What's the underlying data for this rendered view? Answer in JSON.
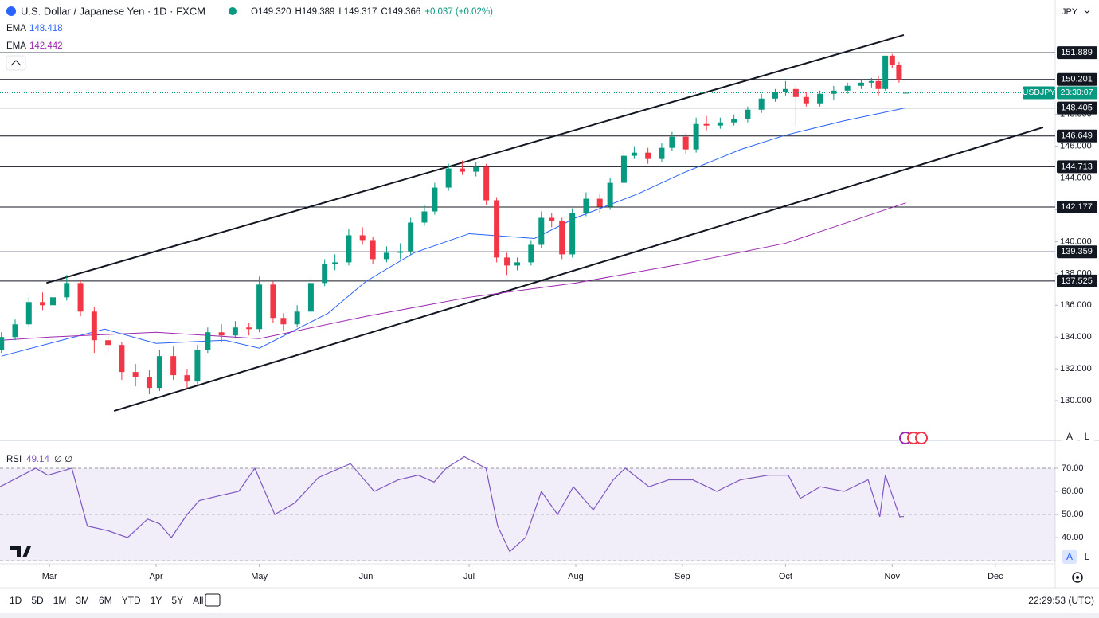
{
  "chart_data": [
    {
      "type": "candlestick",
      "title": "U.S. Dollar / Japanese Yen · 1D · FXCM",
      "ohlc_text": [
        "O149.320",
        "H149.389",
        "L149.317",
        "C149.366",
        "+0.037 (+0.02%)"
      ],
      "up_color": "#089981",
      "down_color": "#f23645",
      "xlim": [
        44.6,
        351.4
      ],
      "ylim": [
        128,
        155.2
      ],
      "grid": false,
      "xticks": [
        {
          "value": 59,
          "label": "Mar"
        },
        {
          "value": 90,
          "label": "Apr"
        },
        {
          "value": 120,
          "label": "May"
        },
        {
          "value": 151,
          "label": "Jun"
        },
        {
          "value": 181,
          "label": "Jul"
        },
        {
          "value": 212,
          "label": "Aug"
        },
        {
          "value": 243,
          "label": "Sep"
        },
        {
          "value": 273,
          "label": "Oct"
        },
        {
          "value": 304,
          "label": "Nov"
        },
        {
          "value": 334,
          "label": "Dec"
        }
      ],
      "yticks": [
        {
          "value": 130,
          "label": "130.000"
        },
        {
          "value": 132,
          "label": "132.000"
        },
        {
          "value": 134,
          "label": "134.000"
        },
        {
          "value": 136,
          "label": "136.000"
        },
        {
          "value": 138,
          "label": "138.000"
        },
        {
          "value": 140,
          "label": "140.000"
        },
        {
          "value": 142,
          "label": "142.000"
        },
        {
          "value": 144,
          "label": "144.000"
        },
        {
          "value": 146,
          "label": "146.000"
        },
        {
          "value": 148,
          "label": "148.000"
        }
      ],
      "candles": [
        [
          45,
          133.2,
          134.3,
          133.0,
          134.0
        ],
        [
          49,
          134.0,
          135.1,
          133.8,
          134.8
        ],
        [
          53,
          134.8,
          136.5,
          134.6,
          136.2
        ],
        [
          57,
          136.2,
          136.8,
          135.7,
          136.0
        ],
        [
          60,
          136.0,
          136.9,
          135.8,
          136.5
        ],
        [
          64,
          136.5,
          137.9,
          136.3,
          137.4
        ],
        [
          68,
          137.4,
          137.6,
          135.3,
          135.6
        ],
        [
          72,
          135.6,
          135.9,
          133.0,
          133.8
        ],
        [
          76,
          133.8,
          134.3,
          133.1,
          133.5
        ],
        [
          80,
          133.5,
          133.7,
          131.3,
          131.8
        ],
        [
          84,
          131.8,
          132.3,
          130.9,
          131.5
        ],
        [
          88,
          131.5,
          131.9,
          130.4,
          130.8
        ],
        [
          91,
          130.8,
          133.2,
          130.6,
          132.8
        ],
        [
          95,
          132.8,
          133.4,
          131.3,
          131.6
        ],
        [
          99,
          131.6,
          132.0,
          130.8,
          131.2
        ],
        [
          102,
          131.2,
          133.5,
          131.0,
          133.2
        ],
        [
          105,
          133.2,
          134.6,
          133.0,
          134.3
        ],
        [
          109,
          134.3,
          134.8,
          133.7,
          134.1
        ],
        [
          113,
          134.1,
          135.0,
          133.9,
          134.6
        ],
        [
          117,
          134.6,
          134.9,
          134.1,
          134.5
        ],
        [
          120,
          134.5,
          137.8,
          134.3,
          137.3
        ],
        [
          124,
          137.3,
          137.5,
          134.9,
          135.2
        ],
        [
          127,
          135.2,
          135.5,
          134.4,
          134.8
        ],
        [
          131,
          134.8,
          136.0,
          134.6,
          135.6
        ],
        [
          135,
          135.6,
          137.7,
          135.4,
          137.4
        ],
        [
          139,
          137.4,
          138.9,
          137.2,
          138.6
        ],
        [
          142,
          138.6,
          139.2,
          138.2,
          138.7
        ],
        [
          146,
          138.7,
          140.8,
          138.5,
          140.4
        ],
        [
          150,
          140.4,
          140.9,
          139.8,
          140.1
        ],
        [
          153,
          140.1,
          140.3,
          138.6,
          138.9
        ],
        [
          157,
          138.9,
          139.7,
          138.7,
          139.3
        ],
        [
          161,
          139.3,
          139.9,
          138.9,
          139.4
        ],
        [
          164,
          139.4,
          141.5,
          139.2,
          141.2
        ],
        [
          168,
          141.2,
          142.3,
          141.0,
          141.9
        ],
        [
          171,
          141.9,
          143.7,
          141.7,
          143.4
        ],
        [
          175,
          143.4,
          144.9,
          143.2,
          144.6
        ],
        [
          179,
          144.6,
          145.1,
          144.2,
          144.4
        ],
        [
          183,
          144.4,
          145.0,
          144.1,
          144.7
        ],
        [
          186,
          144.7,
          144.9,
          142.3,
          142.6
        ],
        [
          189,
          142.6,
          142.8,
          138.7,
          139.0
        ],
        [
          192,
          139.0,
          139.3,
          137.9,
          138.5
        ],
        [
          195,
          138.5,
          139.0,
          138.2,
          138.7
        ],
        [
          199,
          138.7,
          140.1,
          138.5,
          139.8
        ],
        [
          202,
          139.8,
          141.9,
          139.6,
          141.5
        ],
        [
          205,
          141.5,
          141.8,
          140.9,
          141.3
        ],
        [
          208,
          141.3,
          141.5,
          138.9,
          139.2
        ],
        [
          211,
          139.2,
          142.1,
          139.0,
          141.8
        ],
        [
          215,
          141.8,
          143.1,
          141.6,
          142.7
        ],
        [
          219,
          142.7,
          143.0,
          141.8,
          142.2
        ],
        [
          222,
          142.2,
          144.0,
          142.0,
          143.7
        ],
        [
          226,
          143.7,
          145.7,
          143.5,
          145.4
        ],
        [
          229,
          145.4,
          146.0,
          145.2,
          145.6
        ],
        [
          233,
          145.6,
          145.9,
          144.9,
          145.2
        ],
        [
          237,
          145.2,
          146.2,
          145.0,
          145.9
        ],
        [
          240,
          145.9,
          146.9,
          145.7,
          146.6
        ],
        [
          244,
          146.6,
          146.8,
          145.5,
          145.8
        ],
        [
          247,
          145.8,
          147.8,
          145.6,
          147.4
        ],
        [
          250,
          147.4,
          147.9,
          147.0,
          147.3
        ],
        [
          254,
          147.3,
          147.8,
          147.1,
          147.5
        ],
        [
          258,
          147.5,
          148.0,
          147.3,
          147.7
        ],
        [
          262,
          147.7,
          148.5,
          147.5,
          148.3
        ],
        [
          266,
          148.3,
          149.3,
          148.1,
          149.0
        ],
        [
          270,
          149.0,
          149.6,
          148.8,
          149.4
        ],
        [
          273,
          149.4,
          150.1,
          149.2,
          149.6
        ],
        [
          276,
          149.6,
          149.8,
          147.3,
          149.1
        ],
        [
          279,
          149.1,
          149.4,
          148.5,
          148.7
        ],
        [
          283,
          148.7,
          149.5,
          148.5,
          149.3
        ],
        [
          287,
          149.3,
          149.8,
          148.9,
          149.5
        ],
        [
          291,
          149.5,
          150.0,
          149.3,
          149.8
        ],
        [
          295,
          149.8,
          150.2,
          149.6,
          150.0
        ],
        [
          298,
          150.0,
          150.3,
          149.7,
          150.1
        ],
        [
          300,
          150.1,
          150.4,
          149.2,
          149.6
        ],
        [
          302,
          149.6,
          151.7,
          149.5,
          151.7
        ],
        [
          304,
          151.7,
          151.8,
          150.9,
          151.1
        ],
        [
          306,
          151.1,
          151.3,
          150.0,
          150.2
        ],
        [
          308,
          149.32,
          149.389,
          149.317,
          149.366
        ]
      ],
      "series": [
        {
          "name": "EMA",
          "color": "#2962ff",
          "legend_value": 148.418,
          "x": [
            45,
            59,
            75,
            90,
            110,
            120,
            140,
            151,
            165,
            181,
            200,
            212,
            230,
            243,
            260,
            273,
            290,
            308
          ],
          "values": [
            132.8,
            133.6,
            134.5,
            133.6,
            133.8,
            133.3,
            135.5,
            137.5,
            139.3,
            140.5,
            140.2,
            141.5,
            143.0,
            144.3,
            145.8,
            146.7,
            147.6,
            148.418
          ]
        },
        {
          "name": "EMA",
          "color": "#9c27b0",
          "legend_value": 142.442,
          "x": [
            45,
            59,
            90,
            120,
            151,
            181,
            212,
            243,
            273,
            308
          ],
          "values": [
            133.8,
            134.0,
            134.3,
            133.9,
            135.3,
            136.5,
            137.4,
            138.6,
            139.9,
            142.442
          ]
        }
      ],
      "levels": [
        151.889,
        150.201,
        148.405,
        146.649,
        144.713,
        142.177,
        139.359,
        137.525
      ],
      "trendlines": [
        {
          "x": [
            58.1,
            307.4
          ],
          "y": [
            137.4,
            153.0
          ]
        },
        {
          "x": [
            77.75,
            347.9
          ],
          "y": [
            129.35,
            147.19
          ]
        }
      ],
      "symbol_label": "USDJPY",
      "countdown": "23:30:07"
    },
    {
      "type": "line",
      "name": "RSI",
      "color": "#7e57c2",
      "legend_value": 49.14,
      "legend_extra": "∅ ∅",
      "xlim": [
        44.6,
        351.4
      ],
      "ylim": [
        29.7,
        78.6
      ],
      "band": [
        30,
        70
      ],
      "yticks": [
        {
          "value": 40,
          "label": "40.00"
        },
        {
          "value": 50,
          "label": "50.00"
        },
        {
          "value": 60,
          "label": "60.00"
        },
        {
          "value": 70,
          "label": "70.00"
        }
      ],
      "x": [
        44.6,
        55,
        58.5,
        65.5,
        70,
        76,
        81.7,
        87.5,
        91,
        94.4,
        99,
        102.5,
        108,
        114,
        118.7,
        124.5,
        130.3,
        137.2,
        146.5,
        153.4,
        160.4,
        166.2,
        170.8,
        174.3,
        179.6,
        185.9,
        189.3,
        192.8,
        197.4,
        202,
        206.7,
        211.3,
        217.1,
        222.9,
        226.4,
        233.3,
        239.1,
        246,
        253,
        259.9,
        268,
        273.8,
        277.3,
        283.1,
        290,
        297,
        300.4,
        302,
        306.2,
        307.4
      ],
      "values": [
        62,
        70,
        67,
        70,
        45,
        43,
        40,
        48,
        46,
        40,
        50,
        56,
        58,
        60,
        70,
        50,
        55,
        66,
        72,
        60,
        65,
        67,
        64,
        70,
        75,
        70,
        45,
        34,
        40,
        60,
        50,
        62,
        52,
        65,
        70,
        62,
        65,
        65,
        60,
        65,
        67,
        67,
        57,
        62,
        60,
        65,
        49,
        67,
        49,
        49.14
      ]
    }
  ],
  "currency": "JPY",
  "scale_buttons": [
    "A",
    "L"
  ],
  "toolbar": {
    "ranges": [
      "1D",
      "5D",
      "1M",
      "3M",
      "6M",
      "YTD",
      "1Y",
      "5Y",
      "All"
    ],
    "time": "22:29:53 (UTC)"
  }
}
